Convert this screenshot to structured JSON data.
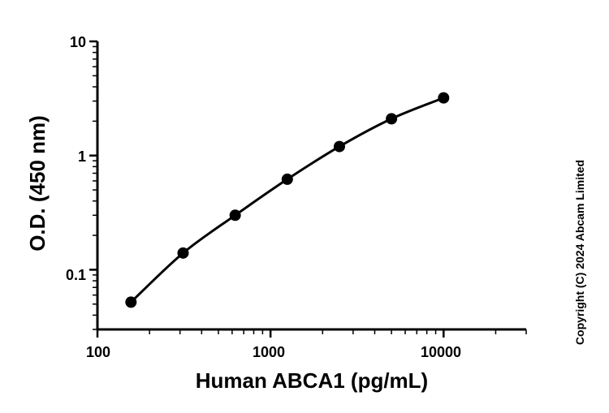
{
  "chart_data": {
    "type": "scatter",
    "xlabel": "Human ABCA1 (pg/mL)",
    "ylabel": "O.D. (450 nm)",
    "xscale": "log",
    "yscale": "log",
    "xlim": [
      100,
      30000
    ],
    "ylim": [
      0.03,
      10
    ],
    "x_tick_labels": [
      "100",
      "1000",
      "10000"
    ],
    "y_tick_labels": [
      "0.1",
      "1",
      "10"
    ],
    "x": [
      156.25,
      312.5,
      625,
      1250,
      2500,
      5000,
      10000
    ],
    "y": [
      0.052,
      0.14,
      0.3,
      0.62,
      1.2,
      2.1,
      3.2
    ],
    "fit_line": true,
    "grid": false,
    "legend": "none"
  },
  "copyright": "Copyright (C) 2024 Abcam Limited",
  "colors": {
    "line": "#000000",
    "marker": "#000000",
    "background": "#ffffff"
  }
}
